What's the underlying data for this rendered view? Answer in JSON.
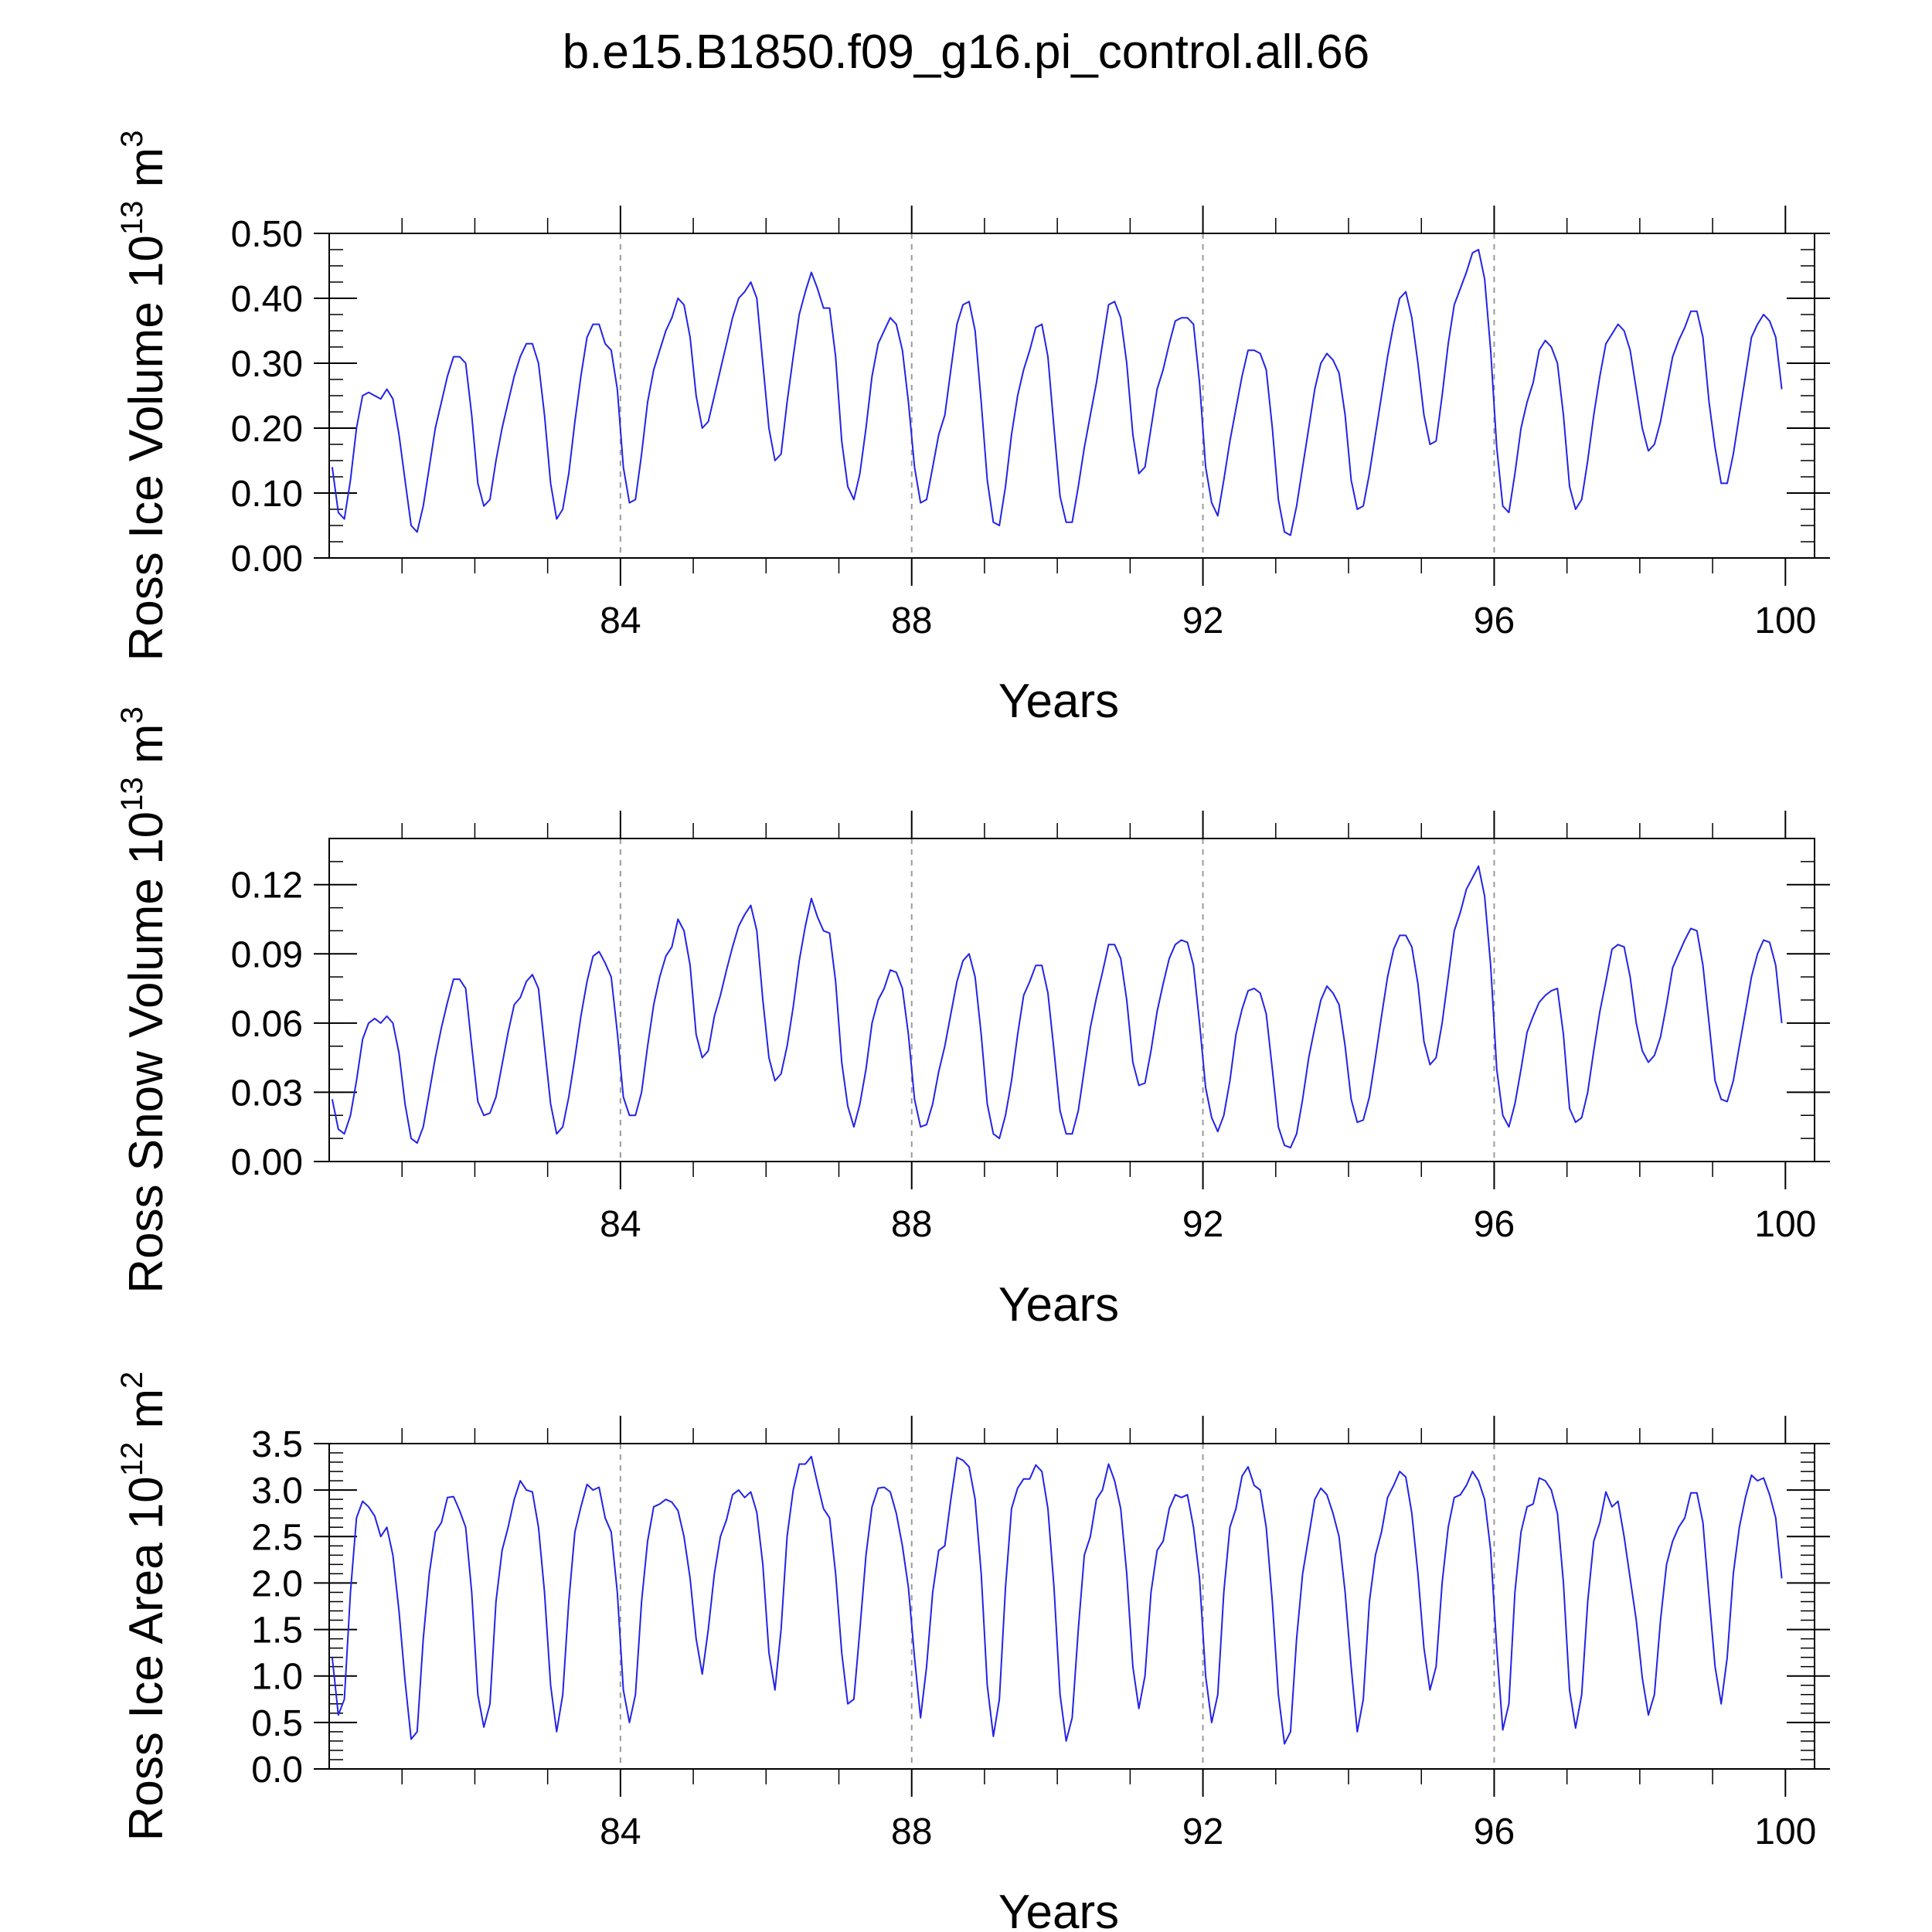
{
  "title": "b.e15.B1850.f09_g16.pi_control.all.66",
  "line_color": "#2323e6",
  "chart_data": [
    {
      "type": "line",
      "id": "ice-volume",
      "ylabel_main": "Ross Ice Volume 10",
      "ylabel_exp": "13",
      "ylabel_unit": " m",
      "ylabel_unit_exp": "3",
      "xlabel": "Years",
      "xlim": [
        80.0,
        100.4
      ],
      "ylim": [
        0.0,
        0.5
      ],
      "ytick_values": [
        0.0,
        0.1,
        0.2,
        0.3,
        0.4,
        0.5
      ],
      "ytick_labels": [
        "0.00",
        "0.10",
        "0.20",
        "0.30",
        "0.40",
        "0.50"
      ],
      "yminor_step": 0.025,
      "xtick_values": [
        84,
        88,
        92,
        96,
        100
      ],
      "xtick_labels": [
        "84",
        "88",
        "92",
        "96",
        "100"
      ],
      "xminor_values": [
        81,
        82,
        83,
        85,
        86,
        87,
        89,
        90,
        91,
        93,
        94,
        95,
        97,
        98,
        99
      ],
      "gridlines_x": [
        84,
        88,
        92,
        96
      ],
      "series": [
        {
          "name": "Ross Ice Volume",
          "x_start": 80.0417,
          "x_step": 0.0833,
          "values": [
            0.14,
            0.07,
            0.06,
            0.12,
            0.2,
            0.25,
            0.255,
            0.25,
            0.245,
            0.26,
            0.245,
            0.19,
            0.12,
            0.05,
            0.04,
            0.08,
            0.14,
            0.2,
            0.24,
            0.28,
            0.31,
            0.31,
            0.3,
            0.22,
            0.115,
            0.08,
            0.09,
            0.15,
            0.2,
            0.24,
            0.28,
            0.31,
            0.33,
            0.33,
            0.3,
            0.22,
            0.115,
            0.06,
            0.075,
            0.13,
            0.21,
            0.28,
            0.34,
            0.36,
            0.36,
            0.33,
            0.32,
            0.26,
            0.14,
            0.085,
            0.09,
            0.16,
            0.24,
            0.29,
            0.32,
            0.35,
            0.37,
            0.4,
            0.39,
            0.34,
            0.25,
            0.2,
            0.21,
            0.25,
            0.29,
            0.33,
            0.37,
            0.4,
            0.41,
            0.425,
            0.4,
            0.3,
            0.2,
            0.15,
            0.16,
            0.24,
            0.31,
            0.375,
            0.41,
            0.44,
            0.415,
            0.385,
            0.385,
            0.31,
            0.18,
            0.11,
            0.09,
            0.13,
            0.2,
            0.28,
            0.33,
            0.35,
            0.37,
            0.36,
            0.32,
            0.24,
            0.14,
            0.085,
            0.09,
            0.14,
            0.19,
            0.22,
            0.29,
            0.36,
            0.39,
            0.395,
            0.35,
            0.24,
            0.12,
            0.055,
            0.05,
            0.11,
            0.19,
            0.25,
            0.29,
            0.32,
            0.355,
            0.36,
            0.31,
            0.2,
            0.095,
            0.055,
            0.055,
            0.11,
            0.17,
            0.22,
            0.27,
            0.33,
            0.39,
            0.395,
            0.37,
            0.3,
            0.19,
            0.13,
            0.14,
            0.2,
            0.26,
            0.29,
            0.33,
            0.365,
            0.37,
            0.37,
            0.36,
            0.27,
            0.14,
            0.085,
            0.065,
            0.12,
            0.18,
            0.23,
            0.28,
            0.32,
            0.32,
            0.315,
            0.29,
            0.2,
            0.09,
            0.04,
            0.035,
            0.08,
            0.14,
            0.2,
            0.26,
            0.3,
            0.315,
            0.305,
            0.285,
            0.22,
            0.12,
            0.075,
            0.08,
            0.13,
            0.19,
            0.25,
            0.31,
            0.36,
            0.4,
            0.41,
            0.37,
            0.3,
            0.22,
            0.175,
            0.18,
            0.25,
            0.33,
            0.39,
            0.415,
            0.44,
            0.47,
            0.475,
            0.43,
            0.32,
            0.17,
            0.08,
            0.07,
            0.13,
            0.2,
            0.24,
            0.27,
            0.32,
            0.335,
            0.325,
            0.3,
            0.22,
            0.11,
            0.075,
            0.09,
            0.15,
            0.22,
            0.28,
            0.33,
            0.345,
            0.36,
            0.35,
            0.32,
            0.26,
            0.2,
            0.165,
            0.175,
            0.21,
            0.26,
            0.31,
            0.335,
            0.355,
            0.38,
            0.38,
            0.34,
            0.24,
            0.17,
            0.115,
            0.115,
            0.16,
            0.22,
            0.28,
            0.34,
            0.36,
            0.375,
            0.365,
            0.34,
            0.26
          ]
        }
      ]
    },
    {
      "type": "line",
      "id": "snow-volume",
      "ylabel_main": "Ross Snow Volume 10",
      "ylabel_exp": "13",
      "ylabel_unit": " m",
      "ylabel_unit_exp": "3",
      "xlabel": "Years",
      "xlim": [
        80.0,
        100.4
      ],
      "ylim": [
        0.0,
        0.14
      ],
      "ytick_values": [
        0.0,
        0.03,
        0.06,
        0.09,
        0.12
      ],
      "ytick_labels": [
        "0.00",
        "0.03",
        "0.06",
        "0.09",
        "0.12"
      ],
      "yminor_step": 0.01,
      "xtick_values": [
        84,
        88,
        92,
        96,
        100
      ],
      "xtick_labels": [
        "84",
        "88",
        "92",
        "96",
        "100"
      ],
      "xminor_values": [
        81,
        82,
        83,
        85,
        86,
        87,
        89,
        90,
        91,
        93,
        94,
        95,
        97,
        98,
        99
      ],
      "gridlines_x": [
        84,
        88,
        92,
        96
      ],
      "series": [
        {
          "name": "Ross Snow Volume",
          "x_start": 80.0417,
          "x_step": 0.0833,
          "values": [
            0.027,
            0.014,
            0.012,
            0.02,
            0.035,
            0.053,
            0.06,
            0.062,
            0.06,
            0.063,
            0.06,
            0.047,
            0.025,
            0.01,
            0.008,
            0.015,
            0.03,
            0.045,
            0.058,
            0.069,
            0.079,
            0.079,
            0.075,
            0.05,
            0.026,
            0.02,
            0.021,
            0.028,
            0.042,
            0.056,
            0.068,
            0.071,
            0.078,
            0.081,
            0.075,
            0.05,
            0.025,
            0.012,
            0.015,
            0.028,
            0.045,
            0.063,
            0.078,
            0.089,
            0.091,
            0.086,
            0.08,
            0.056,
            0.028,
            0.02,
            0.02,
            0.03,
            0.05,
            0.068,
            0.08,
            0.089,
            0.093,
            0.105,
            0.1,
            0.085,
            0.055,
            0.045,
            0.048,
            0.063,
            0.072,
            0.083,
            0.093,
            0.102,
            0.107,
            0.111,
            0.1,
            0.07,
            0.045,
            0.035,
            0.038,
            0.05,
            0.067,
            0.087,
            0.102,
            0.114,
            0.106,
            0.1,
            0.099,
            0.078,
            0.043,
            0.024,
            0.015,
            0.025,
            0.04,
            0.06,
            0.07,
            0.075,
            0.083,
            0.082,
            0.075,
            0.055,
            0.027,
            0.015,
            0.016,
            0.025,
            0.039,
            0.05,
            0.064,
            0.078,
            0.087,
            0.09,
            0.08,
            0.055,
            0.025,
            0.012,
            0.01,
            0.02,
            0.035,
            0.055,
            0.072,
            0.078,
            0.085,
            0.085,
            0.073,
            0.048,
            0.022,
            0.012,
            0.012,
            0.022,
            0.04,
            0.058,
            0.071,
            0.082,
            0.094,
            0.094,
            0.088,
            0.07,
            0.043,
            0.033,
            0.034,
            0.048,
            0.065,
            0.077,
            0.088,
            0.094,
            0.096,
            0.095,
            0.085,
            0.06,
            0.032,
            0.019,
            0.013,
            0.02,
            0.035,
            0.055,
            0.066,
            0.074,
            0.075,
            0.073,
            0.064,
            0.04,
            0.015,
            0.007,
            0.006,
            0.012,
            0.027,
            0.045,
            0.058,
            0.07,
            0.076,
            0.073,
            0.068,
            0.05,
            0.027,
            0.017,
            0.018,
            0.028,
            0.045,
            0.063,
            0.08,
            0.092,
            0.098,
            0.098,
            0.093,
            0.077,
            0.052,
            0.042,
            0.045,
            0.06,
            0.08,
            0.1,
            0.108,
            0.118,
            0.123,
            0.128,
            0.115,
            0.085,
            0.04,
            0.02,
            0.015,
            0.025,
            0.04,
            0.056,
            0.063,
            0.069,
            0.072,
            0.074,
            0.075,
            0.055,
            0.023,
            0.017,
            0.019,
            0.03,
            0.048,
            0.065,
            0.078,
            0.092,
            0.094,
            0.093,
            0.08,
            0.06,
            0.048,
            0.043,
            0.046,
            0.054,
            0.068,
            0.084,
            0.09,
            0.096,
            0.101,
            0.1,
            0.085,
            0.06,
            0.035,
            0.027,
            0.026,
            0.035,
            0.05,
            0.065,
            0.08,
            0.09,
            0.096,
            0.095,
            0.085,
            0.06
          ]
        }
      ]
    },
    {
      "type": "line",
      "id": "ice-area",
      "ylabel_main": "Ross Ice Area 10",
      "ylabel_exp": "12",
      "ylabel_unit": " m",
      "ylabel_unit_exp": "2",
      "xlabel": "Years",
      "xlim": [
        80.0,
        100.4
      ],
      "ylim": [
        0.0,
        3.5
      ],
      "ytick_values": [
        0.0,
        0.5,
        1.0,
        1.5,
        2.0,
        2.5,
        3.0,
        3.5
      ],
      "ytick_labels": [
        "0.0",
        "0.5",
        "1.0",
        "1.5",
        "2.0",
        "2.5",
        "3.0",
        "3.5"
      ],
      "yminor_step": 0.1,
      "xtick_values": [
        84,
        88,
        92,
        96,
        100
      ],
      "xtick_labels": [
        "84",
        "88",
        "92",
        "96",
        "100"
      ],
      "xminor_values": [
        81,
        82,
        83,
        85,
        86,
        87,
        89,
        90,
        91,
        93,
        94,
        95,
        97,
        98,
        99
      ],
      "gridlines_x": [
        84,
        88,
        92,
        96
      ],
      "series": [
        {
          "name": "Ross Ice Area",
          "x_start": 80.0417,
          "x_step": 0.0833,
          "values": [
            1.2,
            0.58,
            0.75,
            1.9,
            2.7,
            2.88,
            2.82,
            2.72,
            2.5,
            2.6,
            2.3,
            1.7,
            0.95,
            0.32,
            0.4,
            1.4,
            2.1,
            2.55,
            2.65,
            2.92,
            2.93,
            2.78,
            2.6,
            1.9,
            0.8,
            0.45,
            0.7,
            1.8,
            2.35,
            2.6,
            2.9,
            3.1,
            3.0,
            2.98,
            2.6,
            1.9,
            0.9,
            0.4,
            0.8,
            1.8,
            2.55,
            2.82,
            3.06,
            3.0,
            3.03,
            2.7,
            2.55,
            1.9,
            0.85,
            0.5,
            0.8,
            1.8,
            2.45,
            2.82,
            2.85,
            2.9,
            2.87,
            2.78,
            2.5,
            2.05,
            1.4,
            1.02,
            1.5,
            2.1,
            2.5,
            2.68,
            2.95,
            3.0,
            2.92,
            2.98,
            2.76,
            2.2,
            1.25,
            0.85,
            1.5,
            2.5,
            3.0,
            3.28,
            3.28,
            3.36,
            3.07,
            2.8,
            2.7,
            2.1,
            1.25,
            0.7,
            0.75,
            1.5,
            2.3,
            2.82,
            3.02,
            3.03,
            2.98,
            2.75,
            2.4,
            1.95,
            1.2,
            0.55,
            1.1,
            1.9,
            2.35,
            2.4,
            2.9,
            3.35,
            3.32,
            3.25,
            2.9,
            2.1,
            0.9,
            0.35,
            0.75,
            1.95,
            2.8,
            3.02,
            3.12,
            3.12,
            3.27,
            3.2,
            2.8,
            1.95,
            0.8,
            0.3,
            0.55,
            1.5,
            2.3,
            2.5,
            2.9,
            3.0,
            3.28,
            3.1,
            2.8,
            2.1,
            1.1,
            0.65,
            1.0,
            1.9,
            2.35,
            2.45,
            2.8,
            2.95,
            2.92,
            2.95,
            2.6,
            2.05,
            1.0,
            0.5,
            0.8,
            1.9,
            2.6,
            2.8,
            3.15,
            3.25,
            3.05,
            3.0,
            2.6,
            1.8,
            0.8,
            0.27,
            0.4,
            1.4,
            2.1,
            2.5,
            2.9,
            3.02,
            2.95,
            2.75,
            2.5,
            1.9,
            1.1,
            0.4,
            0.75,
            1.8,
            2.3,
            2.55,
            2.92,
            3.05,
            3.2,
            3.14,
            2.75,
            2.1,
            1.3,
            0.85,
            1.1,
            2.0,
            2.6,
            2.92,
            2.95,
            3.05,
            3.2,
            3.1,
            2.9,
            2.35,
            1.3,
            0.42,
            0.7,
            1.9,
            2.55,
            2.82,
            2.85,
            3.13,
            3.1,
            3.0,
            2.75,
            2.0,
            0.85,
            0.44,
            0.8,
            1.8,
            2.45,
            2.65,
            2.98,
            2.82,
            2.88,
            2.5,
            2.05,
            1.6,
            0.98,
            0.58,
            0.8,
            1.6,
            2.2,
            2.45,
            2.6,
            2.7,
            2.97,
            2.97,
            2.65,
            1.85,
            1.1,
            0.7,
            1.2,
            2.1,
            2.6,
            2.92,
            3.16,
            3.1,
            3.13,
            2.95,
            2.7,
            2.05
          ]
        }
      ]
    }
  ]
}
